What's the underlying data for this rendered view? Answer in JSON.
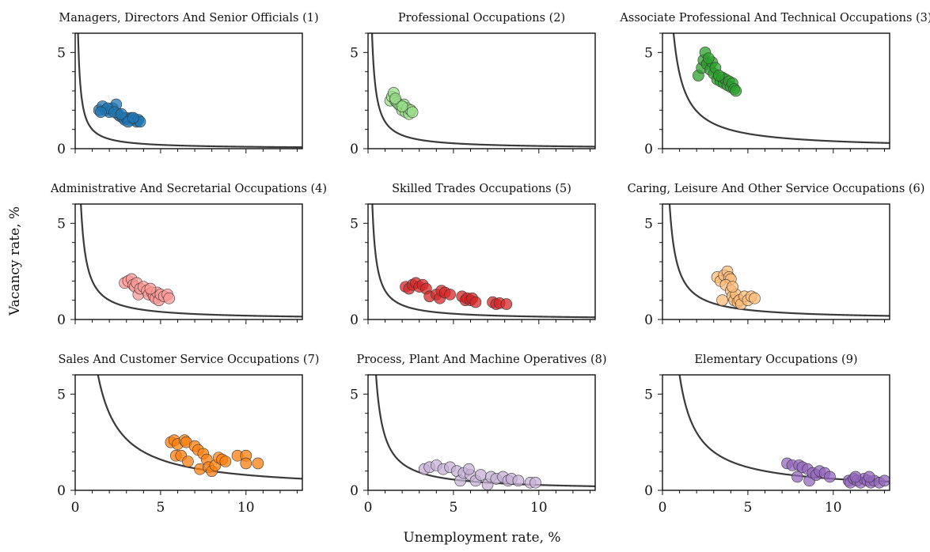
{
  "figure": {
    "ylabel": "Vacancy rate, %",
    "xlabel": "Unemployment rate, %"
  },
  "chart_data": [
    {
      "type": "scatter",
      "title": "Managers, Directors And Senior Officials (1)",
      "xlim": [
        0,
        13.3
      ],
      "ylim": [
        0,
        5
      ],
      "xticks": [
        0,
        5,
        10
      ],
      "yticks": [
        0,
        5
      ],
      "color": "#1f77b4",
      "curve_k": 1.0,
      "points": [
        [
          1.4,
          2.0
        ],
        [
          1.6,
          2.2
        ],
        [
          1.8,
          2.0
        ],
        [
          2.0,
          1.9
        ],
        [
          2.2,
          2.1
        ],
        [
          2.4,
          2.3
        ],
        [
          2.5,
          1.8
        ],
        [
          2.6,
          1.7
        ],
        [
          2.8,
          1.6
        ],
        [
          2.9,
          1.5
        ],
        [
          3.0,
          1.6
        ],
        [
          3.2,
          1.5
        ],
        [
          3.3,
          1.6
        ],
        [
          3.5,
          1.5
        ],
        [
          3.6,
          1.4
        ],
        [
          3.7,
          1.5
        ],
        [
          3.8,
          1.4
        ],
        [
          1.9,
          2.1
        ],
        [
          2.3,
          1.9
        ],
        [
          2.7,
          1.8
        ],
        [
          3.1,
          1.4
        ],
        [
          3.4,
          1.6
        ],
        [
          1.5,
          1.9
        ]
      ]
    },
    {
      "type": "scatter",
      "title": "Professional Occupations (2)",
      "xlim": [
        0,
        13.3
      ],
      "ylim": [
        0,
        5
      ],
      "xticks": [
        0,
        5,
        10
      ],
      "yticks": [
        0,
        5
      ],
      "color": "#98df8a",
      "curve_k": 1.4,
      "points": [
        [
          1.3,
          2.5
        ],
        [
          1.4,
          2.7
        ],
        [
          1.5,
          2.9
        ],
        [
          1.6,
          2.5
        ],
        [
          1.7,
          2.4
        ],
        [
          1.8,
          2.3
        ],
        [
          1.9,
          2.2
        ],
        [
          2.0,
          2.0
        ],
        [
          2.1,
          2.3
        ],
        [
          2.2,
          1.9
        ],
        [
          2.3,
          2.1
        ],
        [
          2.4,
          1.8
        ],
        [
          2.5,
          2.0
        ],
        [
          2.6,
          1.9
        ],
        [
          1.6,
          2.6
        ],
        [
          2.0,
          2.2
        ]
      ]
    },
    {
      "type": "scatter",
      "title": "Associate Professional And Technical Occupations (3)",
      "xlim": [
        0,
        13.3
      ],
      "ylim": [
        0,
        5
      ],
      "xticks": [
        0,
        5,
        10
      ],
      "yticks": [
        0,
        5
      ],
      "color": "#2ca02c",
      "curve_k": 3.9,
      "points": [
        [
          2.1,
          3.8
        ],
        [
          2.3,
          4.2
        ],
        [
          2.4,
          4.6
        ],
        [
          2.5,
          5.0
        ],
        [
          2.6,
          4.4
        ],
        [
          2.8,
          4.1
        ],
        [
          2.9,
          4.5
        ],
        [
          3.0,
          3.9
        ],
        [
          3.1,
          4.2
        ],
        [
          3.2,
          3.6
        ],
        [
          3.4,
          3.5
        ],
        [
          3.5,
          3.7
        ],
        [
          3.6,
          3.4
        ],
        [
          3.7,
          3.6
        ],
        [
          3.8,
          3.3
        ],
        [
          3.9,
          3.5
        ],
        [
          4.0,
          3.2
        ],
        [
          4.1,
          3.4
        ],
        [
          4.2,
          3.1
        ],
        [
          4.3,
          3.0
        ],
        [
          2.7,
          4.7
        ],
        [
          3.3,
          3.8
        ]
      ]
    },
    {
      "type": "scatter",
      "title": "Administrative And Secretarial Occupations (4)",
      "xlim": [
        0,
        13.3
      ],
      "ylim": [
        0,
        5
      ],
      "xticks": [
        0,
        5,
        10
      ],
      "yticks": [
        0,
        5
      ],
      "color": "#ff9896",
      "curve_k": 2.0,
      "points": [
        [
          2.9,
          1.9
        ],
        [
          3.1,
          2.0
        ],
        [
          3.3,
          2.1
        ],
        [
          3.4,
          1.8
        ],
        [
          3.5,
          1.7
        ],
        [
          3.6,
          1.9
        ],
        [
          3.7,
          1.3
        ],
        [
          3.8,
          1.6
        ],
        [
          4.0,
          1.7
        ],
        [
          4.2,
          1.5
        ],
        [
          4.3,
          1.3
        ],
        [
          4.5,
          1.4
        ],
        [
          4.6,
          1.2
        ],
        [
          4.7,
          1.1
        ],
        [
          4.8,
          1.4
        ],
        [
          4.9,
          1.0
        ],
        [
          5.0,
          1.3
        ],
        [
          5.2,
          1.2
        ],
        [
          5.4,
          1.3
        ],
        [
          5.5,
          1.1
        ],
        [
          4.4,
          1.6
        ]
      ]
    },
    {
      "type": "scatter",
      "title": "Skilled Trades Occupations (5)",
      "xlim": [
        0,
        13.3
      ],
      "ylim": [
        0,
        5
      ],
      "xticks": [
        0,
        5,
        10
      ],
      "yticks": [
        0,
        5
      ],
      "color": "#d62728",
      "curve_k": 1.5,
      "points": [
        [
          2.2,
          1.7
        ],
        [
          2.4,
          1.6
        ],
        [
          2.6,
          1.8
        ],
        [
          2.8,
          1.9
        ],
        [
          3.0,
          1.7
        ],
        [
          3.2,
          1.8
        ],
        [
          3.4,
          1.6
        ],
        [
          3.6,
          1.2
        ],
        [
          4.0,
          1.3
        ],
        [
          4.2,
          1.1
        ],
        [
          4.3,
          1.5
        ],
        [
          4.5,
          1.4
        ],
        [
          4.8,
          1.3
        ],
        [
          5.5,
          1.2
        ],
        [
          5.7,
          1.0
        ],
        [
          5.8,
          1.1
        ],
        [
          6.0,
          1.0
        ],
        [
          6.1,
          1.1
        ],
        [
          6.3,
          0.9
        ],
        [
          7.3,
          0.9
        ],
        [
          7.5,
          0.8
        ],
        [
          7.7,
          0.85
        ],
        [
          8.1,
          0.8
        ]
      ]
    },
    {
      "type": "scatter",
      "title": "Caring, Leisure And Other Service Occupations (6)",
      "xlim": [
        0,
        13.3
      ],
      "ylim": [
        0,
        5
      ],
      "xticks": [
        0,
        5,
        10
      ],
      "yticks": [
        0,
        5
      ],
      "color": "#ffbb78",
      "curve_k": 2.5,
      "points": [
        [
          3.2,
          2.2
        ],
        [
          3.4,
          2.0
        ],
        [
          3.6,
          2.3
        ],
        [
          3.8,
          2.5
        ],
        [
          3.9,
          2.2
        ],
        [
          4.0,
          2.1
        ],
        [
          3.7,
          1.8
        ],
        [
          4.0,
          1.5
        ],
        [
          4.1,
          1.2
        ],
        [
          4.2,
          1.0
        ],
        [
          4.3,
          1.3
        ],
        [
          4.4,
          0.9
        ],
        [
          4.5,
          1.0
        ],
        [
          4.6,
          0.8
        ],
        [
          4.8,
          1.2
        ],
        [
          5.0,
          1.0
        ],
        [
          5.2,
          1.2
        ],
        [
          5.4,
          1.1
        ],
        [
          3.5,
          1.0
        ],
        [
          4.1,
          1.7
        ]
      ]
    },
    {
      "type": "scatter",
      "title": "Sales And Customer Service Occupations (7)",
      "xlim": [
        0,
        13.3
      ],
      "ylim": [
        0,
        5
      ],
      "xticks": [
        0,
        5,
        10
      ],
      "yticks": [
        0,
        5
      ],
      "color": "#ff7f0e",
      "curve_k": 8.0,
      "points": [
        [
          5.6,
          2.5
        ],
        [
          5.8,
          2.6
        ],
        [
          6.0,
          2.4
        ],
        [
          6.4,
          2.6
        ],
        [
          6.5,
          2.5
        ],
        [
          5.9,
          1.8
        ],
        [
          6.2,
          1.8
        ],
        [
          6.6,
          1.5
        ],
        [
          7.0,
          2.3
        ],
        [
          7.2,
          2.1
        ],
        [
          7.5,
          1.9
        ],
        [
          7.7,
          1.6
        ],
        [
          7.3,
          1.1
        ],
        [
          7.8,
          1.2
        ],
        [
          8.0,
          1.0
        ],
        [
          8.2,
          1.3
        ],
        [
          8.4,
          1.7
        ],
        [
          8.6,
          1.6
        ],
        [
          8.8,
          1.5
        ],
        [
          9.5,
          1.8
        ],
        [
          10.0,
          1.8
        ],
        [
          10.0,
          1.4
        ],
        [
          10.7,
          1.4
        ]
      ]
    },
    {
      "type": "scatter",
      "title": "Process, Plant And Machine Operatives (8)",
      "xlim": [
        0,
        13.3
      ],
      "ylim": [
        0,
        5
      ],
      "xticks": [
        0,
        5,
        10
      ],
      "yticks": [
        0,
        5
      ],
      "color": "#c5b0d5",
      "curve_k": 2.8,
      "points": [
        [
          3.3,
          1.1
        ],
        [
          3.6,
          1.2
        ],
        [
          4.0,
          1.3
        ],
        [
          4.4,
          1.1
        ],
        [
          4.8,
          1.2
        ],
        [
          5.2,
          1.0
        ],
        [
          5.4,
          0.5
        ],
        [
          5.6,
          0.9
        ],
        [
          6.0,
          0.8
        ],
        [
          6.3,
          0.5
        ],
        [
          6.6,
          0.8
        ],
        [
          7.0,
          0.3
        ],
        [
          7.2,
          0.7
        ],
        [
          7.5,
          0.6
        ],
        [
          7.9,
          0.7
        ],
        [
          8.2,
          0.5
        ],
        [
          8.4,
          0.6
        ],
        [
          8.8,
          0.5
        ],
        [
          9.5,
          0.4
        ],
        [
          9.8,
          0.4
        ],
        [
          5.9,
          1.1
        ]
      ]
    },
    {
      "type": "scatter",
      "title": "Elementary Occupations (9)",
      "xlim": [
        0,
        13.3
      ],
      "ylim": [
        0,
        5
      ],
      "xticks": [
        0,
        5,
        10
      ],
      "yticks": [
        0,
        5
      ],
      "color": "#9467bd",
      "curve_k": 6.0,
      "points": [
        [
          7.3,
          1.4
        ],
        [
          7.6,
          1.3
        ],
        [
          7.9,
          0.7
        ],
        [
          8.0,
          1.3
        ],
        [
          8.2,
          1.2
        ],
        [
          8.5,
          1.1
        ],
        [
          8.6,
          0.5
        ],
        [
          8.8,
          0.9
        ],
        [
          9.0,
          0.8
        ],
        [
          9.2,
          1.0
        ],
        [
          9.5,
          0.9
        ],
        [
          9.8,
          0.7
        ],
        [
          10.9,
          0.5
        ],
        [
          11.0,
          0.4
        ],
        [
          11.2,
          0.6
        ],
        [
          11.4,
          0.5
        ],
        [
          11.6,
          0.4
        ],
        [
          11.8,
          0.6
        ],
        [
          12.0,
          0.5
        ],
        [
          12.2,
          0.4
        ],
        [
          12.4,
          0.5
        ],
        [
          12.7,
          0.4
        ],
        [
          13.0,
          0.5
        ],
        [
          11.3,
          0.7
        ],
        [
          12.1,
          0.7
        ]
      ]
    }
  ]
}
